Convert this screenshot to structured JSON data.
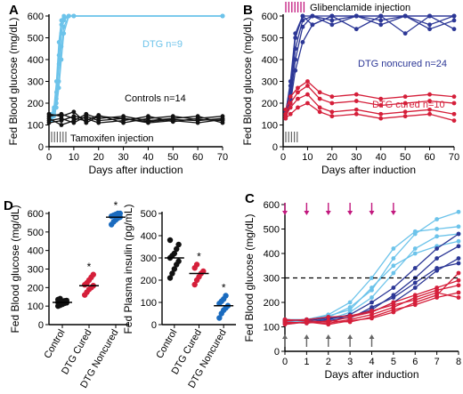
{
  "colors": {
    "light_blue": "#6cc3ea",
    "dark_blue": "#2c3796",
    "mid_blue": "#1a6bbf",
    "red": "#d51f3a",
    "black": "#111111",
    "magenta": "#c2187e",
    "grey": "#666666"
  },
  "chart_data": [
    {
      "panel": "A",
      "type": "line",
      "xlabel": "Days after induction",
      "ylabel": "Fed Blood glucose (mg/dL)",
      "xlim": [
        0,
        70
      ],
      "ylim": [
        0,
        600
      ],
      "xticks": [
        "0",
        "10",
        "20",
        "30",
        "40",
        "50",
        "60",
        "70"
      ],
      "yticks": [
        "0",
        "100",
        "200",
        "300",
        "400",
        "500",
        "600"
      ],
      "annotations": {
        "dtg": "DTG n=9",
        "controls": "Controls n=14",
        "tamoxifen": "Tamoxifen injection"
      },
      "series": [
        {
          "group": "DTG",
          "color": "light_blue",
          "x": [
            1,
            2,
            3,
            4,
            5,
            6,
            8,
            10,
            70
          ],
          "y": [
            140,
            160,
            220,
            380,
            520,
            580,
            600,
            600,
            600
          ]
        },
        {
          "group": "DTG",
          "color": "light_blue",
          "x": [
            1,
            2,
            3,
            4,
            5,
            6,
            8,
            10,
            70
          ],
          "y": [
            130,
            150,
            250,
            420,
            560,
            590,
            600,
            600,
            600
          ]
        },
        {
          "group": "DTG",
          "color": "light_blue",
          "x": [
            1,
            2,
            3,
            4,
            5,
            6,
            8,
            10,
            70
          ],
          "y": [
            150,
            170,
            200,
            300,
            460,
            550,
            600,
            600,
            600
          ]
        },
        {
          "group": "DTG",
          "color": "light_blue",
          "x": [
            1,
            2,
            3,
            4,
            5,
            6,
            8,
            10,
            70
          ],
          "y": [
            120,
            140,
            180,
            270,
            400,
            520,
            600,
            600,
            600
          ]
        },
        {
          "group": "DTG",
          "color": "light_blue",
          "x": [
            1,
            2,
            3,
            4,
            5,
            6,
            8,
            10,
            70
          ],
          "y": [
            140,
            180,
            300,
            480,
            580,
            600,
            600,
            600,
            600
          ]
        },
        {
          "group": "Controls",
          "color": "black",
          "x": [
            0,
            5,
            10,
            15,
            20,
            30,
            40,
            50,
            60,
            70
          ],
          "y": [
            120,
            130,
            110,
            140,
            120,
            130,
            115,
            125,
            120,
            130
          ]
        },
        {
          "group": "Controls",
          "color": "black",
          "x": [
            0,
            5,
            10,
            15,
            20,
            30,
            40,
            50,
            60,
            70
          ],
          "y": [
            140,
            150,
            130,
            120,
            145,
            110,
            130,
            140,
            125,
            120
          ]
        },
        {
          "group": "Controls",
          "color": "black",
          "x": [
            0,
            5,
            10,
            15,
            20,
            30,
            40,
            50,
            60,
            70
          ],
          "y": [
            110,
            120,
            140,
            130,
            110,
            120,
            140,
            115,
            130,
            140
          ]
        },
        {
          "group": "Controls",
          "color": "black",
          "x": [
            0,
            5,
            10,
            15,
            20,
            30,
            40,
            50,
            60,
            70
          ],
          "y": [
            130,
            100,
            120,
            150,
            130,
            140,
            120,
            130,
            140,
            110
          ]
        },
        {
          "group": "Controls",
          "color": "black",
          "x": [
            0,
            5,
            10,
            15,
            20,
            30,
            40,
            50,
            60,
            70
          ],
          "y": [
            150,
            140,
            160,
            110,
            140,
            130,
            110,
            120,
            110,
            125
          ]
        }
      ]
    },
    {
      "panel": "B",
      "type": "line",
      "xlabel": "Days after induction",
      "ylabel": "Fed Blood glucose (mg/dL)",
      "xlim": [
        0,
        70
      ],
      "ylim": [
        0,
        600
      ],
      "xticks": [
        "0",
        "10",
        "20",
        "30",
        "40",
        "50",
        "60",
        "70"
      ],
      "yticks": [
        "0",
        "100",
        "200",
        "300",
        "400",
        "500",
        "600"
      ],
      "annotations": {
        "glibenclamide": "Glibenclamide injection",
        "noncured": "DTG noncured n=24",
        "cured": "DTG cured n=10"
      },
      "series": [
        {
          "group": "DTG noncured",
          "color": "dark_blue",
          "x": [
            1,
            3,
            5,
            8,
            12,
            20,
            30,
            40,
            50,
            60,
            70
          ],
          "y": [
            150,
            250,
            450,
            580,
            600,
            600,
            600,
            600,
            600,
            600,
            600
          ]
        },
        {
          "group": "DTG noncured",
          "color": "dark_blue",
          "x": [
            1,
            3,
            5,
            8,
            12,
            20,
            30,
            40,
            50,
            60,
            70
          ],
          "y": [
            140,
            220,
            400,
            550,
            600,
            580,
            600,
            560,
            600,
            540,
            580
          ]
        },
        {
          "group": "DTG noncured",
          "color": "dark_blue",
          "x": [
            1,
            3,
            5,
            8,
            12,
            20,
            30,
            40,
            50,
            60,
            70
          ],
          "y": [
            160,
            280,
            500,
            600,
            560,
            600,
            540,
            600,
            520,
            600,
            600
          ]
        },
        {
          "group": "DTG noncured",
          "color": "dark_blue",
          "x": [
            1,
            3,
            5,
            8,
            12,
            20,
            30,
            40,
            50,
            60,
            70
          ],
          "y": [
            130,
            200,
            350,
            480,
            560,
            600,
            600,
            600,
            600,
            560,
            600
          ]
        },
        {
          "group": "DTG noncured",
          "color": "dark_blue",
          "x": [
            1,
            3,
            5,
            8,
            12,
            20,
            30,
            40,
            50,
            60,
            70
          ],
          "y": [
            150,
            300,
            520,
            600,
            600,
            560,
            600,
            580,
            600,
            600,
            540
          ]
        },
        {
          "group": "DTG cured",
          "color": "red",
          "x": [
            1,
            3,
            6,
            10,
            15,
            20,
            30,
            40,
            50,
            60,
            70
          ],
          "y": [
            150,
            200,
            250,
            280,
            220,
            200,
            210,
            190,
            200,
            210,
            200
          ]
        },
        {
          "group": "DTG cured",
          "color": "red",
          "x": [
            1,
            3,
            6,
            10,
            15,
            20,
            30,
            40,
            50,
            60,
            70
          ],
          "y": [
            140,
            180,
            220,
            240,
            180,
            160,
            170,
            150,
            160,
            170,
            150
          ]
        },
        {
          "group": "DTG cured",
          "color": "red",
          "x": [
            1,
            3,
            6,
            10,
            15,
            20,
            30,
            40,
            50,
            60,
            70
          ],
          "y": [
            170,
            230,
            270,
            300,
            250,
            230,
            240,
            220,
            230,
            240,
            230
          ]
        },
        {
          "group": "DTG cured",
          "color": "red",
          "x": [
            1,
            3,
            6,
            10,
            15,
            20,
            30,
            40,
            50,
            60,
            70
          ],
          "y": [
            130,
            150,
            180,
            200,
            160,
            140,
            150,
            130,
            140,
            150,
            120
          ]
        }
      ]
    },
    {
      "panel": "D-left",
      "type": "scatter",
      "ylabel": "Fed Blood glucose (mg/dL)",
      "ylim": [
        0,
        600
      ],
      "yticks": [
        "0",
        "100",
        "200",
        "300",
        "400",
        "500",
        "600"
      ],
      "categories": [
        "Control",
        "DTG Cured",
        "DTG Noncured"
      ],
      "category_colors": [
        "black",
        "red",
        "mid_blue"
      ],
      "means": [
        120,
        210,
        580
      ],
      "significance": [
        "",
        "*",
        "*"
      ],
      "values": [
        [
          100,
          105,
          110,
          115,
          118,
          120,
          122,
          125,
          128,
          130,
          135,
          140
        ],
        [
          160,
          175,
          190,
          200,
          210,
          215,
          225,
          240,
          255,
          270
        ],
        [
          540,
          555,
          565,
          575,
          580,
          585,
          590,
          595,
          600,
          600
        ]
      ]
    },
    {
      "panel": "D-right",
      "type": "scatter",
      "ylabel": "Fed Plasma insulin (pg/mL)",
      "ylim": [
        0,
        500
      ],
      "yticks": [
        "0",
        "100",
        "200",
        "300",
        "400",
        "500"
      ],
      "categories": [
        "Control",
        "DTG Cured",
        "DTG Noncured"
      ],
      "category_colors": [
        "black",
        "red",
        "mid_blue"
      ],
      "means": [
        300,
        230,
        85
      ],
      "significance": [
        "",
        "*",
        "*"
      ],
      "values": [
        [
          210,
          230,
          250,
          270,
          285,
          300,
          310,
          320,
          340,
          360,
          380
        ],
        [
          180,
          200,
          215,
          230,
          240,
          255,
          270
        ],
        [
          30,
          50,
          65,
          75,
          85,
          95,
          105,
          115,
          130
        ]
      ]
    },
    {
      "panel": "C",
      "type": "line",
      "xlabel": "Days after induction",
      "ylabel": "Fed Blood glucose (mg/dL)",
      "xlim": [
        0,
        8
      ],
      "ylim": [
        0,
        600
      ],
      "xticks": [
        "0",
        "1",
        "2",
        "3",
        "4",
        "5",
        "6",
        "7",
        "8"
      ],
      "yticks": [
        "0",
        "100",
        "200",
        "300",
        "400",
        "500",
        "600"
      ],
      "threshold": 300,
      "glibenclamide_days": [
        0,
        1,
        2,
        3,
        4,
        5
      ],
      "tamoxifen_days": [
        0,
        1,
        2,
        3,
        4
      ],
      "series": [
        {
          "color": "light_blue",
          "x": [
            0,
            1,
            2,
            3,
            4,
            5,
            6,
            7,
            8
          ],
          "y": [
            120,
            125,
            140,
            180,
            250,
            380,
            480,
            540,
            570
          ]
        },
        {
          "color": "light_blue",
          "x": [
            0,
            1,
            2,
            3,
            4,
            5,
            6,
            7,
            8
          ],
          "y": [
            130,
            130,
            150,
            200,
            300,
            420,
            490,
            500,
            510
          ]
        },
        {
          "color": "light_blue",
          "x": [
            0,
            1,
            2,
            3,
            4,
            5,
            6,
            7,
            8
          ],
          "y": [
            110,
            120,
            130,
            160,
            220,
            320,
            420,
            470,
            480
          ]
        },
        {
          "color": "light_blue",
          "x": [
            0,
            1,
            2,
            3,
            4,
            5,
            6,
            7,
            8
          ],
          "y": [
            125,
            130,
            145,
            170,
            260,
            350,
            400,
            430,
            450
          ]
        },
        {
          "color": "dark_blue",
          "x": [
            0,
            1,
            2,
            3,
            4,
            5,
            6,
            7,
            8
          ],
          "y": [
            120,
            115,
            125,
            140,
            170,
            230,
            300,
            380,
            430
          ]
        },
        {
          "color": "dark_blue",
          "x": [
            0,
            1,
            2,
            3,
            4,
            5,
            6,
            7,
            8
          ],
          "y": [
            115,
            120,
            130,
            150,
            200,
            260,
            340,
            420,
            480
          ]
        },
        {
          "color": "dark_blue",
          "x": [
            0,
            1,
            2,
            3,
            4,
            5,
            6,
            7,
            8
          ],
          "y": [
            130,
            125,
            135,
            145,
            160,
            200,
            260,
            330,
            380
          ]
        },
        {
          "color": "dark_blue",
          "x": [
            0,
            1,
            2,
            3,
            4,
            5,
            6,
            7,
            8
          ],
          "y": [
            125,
            130,
            140,
            135,
            180,
            220,
            280,
            340,
            360
          ]
        },
        {
          "color": "red",
          "x": [
            0,
            1,
            2,
            3,
            4,
            5,
            6,
            7,
            8
          ],
          "y": [
            110,
            120,
            115,
            130,
            150,
            180,
            220,
            250,
            270
          ]
        },
        {
          "color": "red",
          "x": [
            0,
            1,
            2,
            3,
            4,
            5,
            6,
            7,
            8
          ],
          "y": [
            130,
            125,
            120,
            140,
            160,
            200,
            230,
            260,
            290
          ]
        },
        {
          "color": "red",
          "x": [
            0,
            1,
            2,
            3,
            4,
            5,
            6,
            7,
            8
          ],
          "y": [
            120,
            115,
            125,
            120,
            140,
            170,
            190,
            220,
            240
          ]
        },
        {
          "color": "red",
          "x": [
            0,
            1,
            2,
            3,
            4,
            5,
            6,
            7,
            8
          ],
          "y": [
            125,
            130,
            140,
            145,
            165,
            190,
            210,
            240,
            220
          ]
        },
        {
          "color": "red",
          "x": [
            0,
            1,
            2,
            3,
            4,
            5,
            6,
            7,
            8
          ],
          "y": [
            115,
            120,
            110,
            125,
            135,
            160,
            200,
            230,
            320
          ]
        }
      ]
    }
  ]
}
